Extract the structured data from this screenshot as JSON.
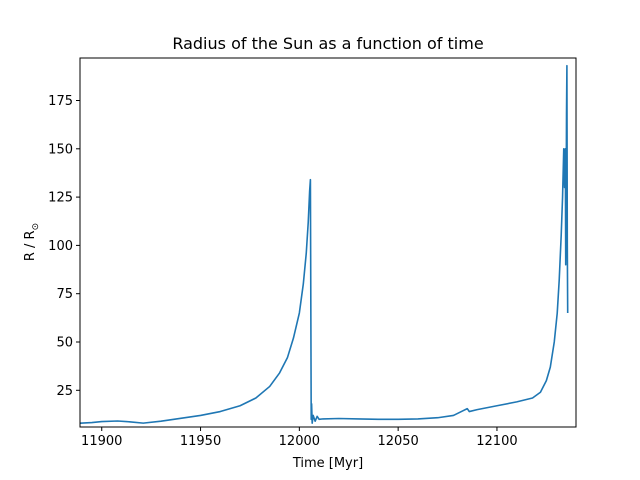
{
  "colors": {
    "line": "#1f77b4",
    "axes": "#000000",
    "background": "#ffffff"
  },
  "chart_data": {
    "type": "line",
    "title": "Radius of the Sun as a function of time",
    "xlabel": "Time [Myr]",
    "ylabel": "R / R",
    "ylabel_subscript": "⊙",
    "xlim": [
      11889,
      12140
    ],
    "ylim": [
      6,
      197
    ],
    "xticks": [
      11900,
      11950,
      12000,
      12050,
      12100
    ],
    "xtick_labels": [
      "11900",
      "11950",
      "12000",
      "12050",
      "12100"
    ],
    "yticks": [
      25,
      50,
      75,
      100,
      125,
      150,
      175
    ],
    "ytick_labels": [
      "25",
      "50",
      "75",
      "100",
      "125",
      "150",
      "175"
    ],
    "grid": false,
    "legend": "none",
    "series": [
      {
        "x": [
          11889,
          11895,
          11900,
          11908,
          11914,
          11921,
          11930,
          11940,
          11950,
          11960,
          11970,
          11978,
          11985,
          11990,
          11994,
          11997,
          12000,
          12002,
          12003.5,
          12004.5,
          12005.2,
          12005.6,
          12006.0,
          12006.2,
          12006.5,
          12007,
          12008,
          12009,
          12010,
          12012,
          12020,
          12030,
          12040,
          12050,
          12060,
          12070,
          12078,
          12083,
          12085,
          12086,
          12090,
          12100,
          12110,
          12118,
          12122,
          12125,
          12127,
          12129,
          12130.5,
          12131.5,
          12132.5,
          12133.2,
          12133.8,
          12134.2,
          12134.6,
          12134.8,
          12135.0,
          12135.2,
          12135.4,
          12135.6,
          12135.8
        ],
        "y": [
          8,
          8.3,
          8.8,
          9.1,
          8.7,
          8,
          9,
          10.5,
          12,
          14,
          17,
          21,
          27,
          34,
          42,
          52,
          65,
          80,
          96,
          112,
          128,
          134,
          10,
          18,
          8,
          12,
          9,
          11.5,
          10,
          10.2,
          10.4,
          10.2,
          10.0,
          10.0,
          10.2,
          10.8,
          12,
          14.5,
          15.5,
          14,
          15,
          17,
          19,
          21,
          24,
          30,
          37,
          50,
          65,
          82,
          105,
          125,
          150,
          130,
          150,
          90,
          120,
          168,
          193,
          100,
          65
        ]
      }
    ]
  }
}
